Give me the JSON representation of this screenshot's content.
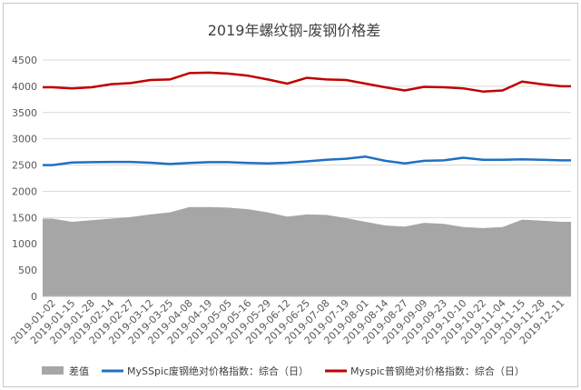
{
  "chart_data": {
    "type": "line",
    "title": "2019年螺纹钢-废钢价格差",
    "xlabel": "",
    "ylabel": "",
    "ylim": [
      0,
      4500
    ],
    "yticks": [
      0,
      500,
      1000,
      1500,
      2000,
      2500,
      3000,
      3500,
      4000,
      4500
    ],
    "grid": "horizontal",
    "legend": "bottom",
    "colors": {
      "diff": "#a6a6a6",
      "scrap": "#1f70c1",
      "rebar": "#c00000"
    },
    "x": [
      "2019-01-02",
      "2019-01-15",
      "2019-01-28",
      "2019-02-14",
      "2019-02-27",
      "2019-03-12",
      "2019-03-25",
      "2019-04-08",
      "2019-04-19",
      "2019-05-05",
      "2019-05-16",
      "2019-05-29",
      "2019-06-12",
      "2019-06-25",
      "2019-07-08",
      "2019-07-19",
      "2019-08-01",
      "2019-08-14",
      "2019-08-27",
      "2019-09-09",
      "2019-09-23",
      "2019-10-10",
      "2019-10-22",
      "2019-11-04",
      "2019-11-15",
      "2019-11-28",
      "2019-12-11"
    ],
    "series": [
      {
        "name": "差值",
        "type": "area",
        "values": [
          1480,
          1420,
          1450,
          1480,
          1510,
          1560,
          1600,
          1700,
          1700,
          1690,
          1660,
          1600,
          1520,
          1560,
          1550,
          1490,
          1420,
          1350,
          1330,
          1400,
          1380,
          1320,
          1300,
          1320,
          1460,
          1440,
          1420
        ]
      },
      {
        "name": "MySSpic废钢绝对价格指数：综合（日）",
        "type": "line",
        "values": [
          2500,
          2550,
          2555,
          2560,
          2560,
          2545,
          2520,
          2540,
          2555,
          2555,
          2540,
          2530,
          2545,
          2570,
          2600,
          2620,
          2660,
          2580,
          2530,
          2580,
          2590,
          2640,
          2600,
          2600,
          2610,
          2600,
          2590
        ]
      },
      {
        "name": "Myspic普钢绝对价格指数：综合（日）",
        "type": "line",
        "values": [
          3980,
          3960,
          3980,
          4040,
          4060,
          4120,
          4130,
          4250,
          4260,
          4240,
          4200,
          4130,
          4050,
          4160,
          4130,
          4120,
          4050,
          3980,
          3920,
          3990,
          3980,
          3960,
          3900,
          3920,
          4090,
          4040,
          4000
        ]
      }
    ]
  }
}
